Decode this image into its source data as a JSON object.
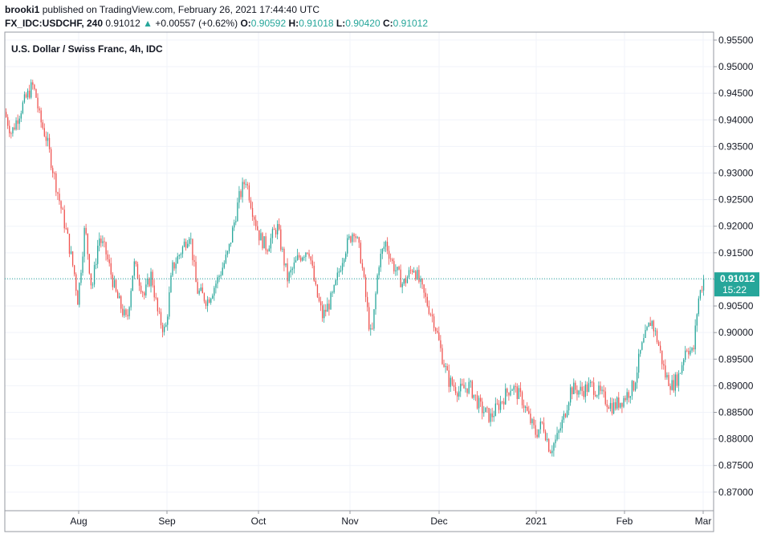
{
  "header": {
    "author": "brooki1",
    "published_text": "published on TradingView.com, February 26, 2021 17:44:40 UTC",
    "symbol": "FX_IDC:USDCHF, 240",
    "last": "0.91012",
    "change_arrow": "▲",
    "change": "+0.00557 (+0.62%)",
    "o_label": "O:",
    "o_value": "0.90592",
    "h_label": "H:",
    "h_value": "0.91018",
    "l_label": "L:",
    "l_value": "0.90420",
    "c_label": "C:",
    "c_value": "0.91012"
  },
  "colors": {
    "up": "#26a69a",
    "down": "#ef5350",
    "price_tag": "#26a69a",
    "axis_text": "#131722",
    "grid": "#f0f3fa"
  },
  "chart_data": {
    "type": "candlestick",
    "title": "U.S. Dollar / Swiss Franc, 4h, IDC",
    "xlabel": "",
    "ylabel": "",
    "ylim": [
      0.8665,
      0.9565
    ],
    "y_ticks": [
      "0.95500",
      "0.95000",
      "0.94500",
      "0.94000",
      "0.93500",
      "0.93000",
      "0.92500",
      "0.92000",
      "0.91500",
      "0.91000",
      "0.90500",
      "0.90000",
      "0.89500",
      "0.89000",
      "0.88500",
      "0.88000",
      "0.87500",
      "0.87000"
    ],
    "x_ticks": [
      "Aug",
      "Sep",
      "Oct",
      "Nov",
      "Dec",
      "2021",
      "Feb",
      "Mar"
    ],
    "grid": true,
    "last_price": "0.91012",
    "countdown": "15:22",
    "path_points": [
      [
        0,
        0.9415
      ],
      [
        0.01,
        0.9375
      ],
      [
        0.025,
        0.9425
      ],
      [
        0.04,
        0.9465
      ],
      [
        0.045,
        0.9445
      ],
      [
        0.05,
        0.9405
      ],
      [
        0.06,
        0.9365
      ],
      [
        0.075,
        0.927
      ],
      [
        0.09,
        0.918
      ],
      [
        0.1,
        0.911
      ],
      [
        0.105,
        0.906
      ],
      [
        0.115,
        0.92
      ],
      [
        0.125,
        0.908
      ],
      [
        0.135,
        0.918
      ],
      [
        0.145,
        0.915
      ],
      [
        0.16,
        0.907
      ],
      [
        0.175,
        0.902
      ],
      [
        0.185,
        0.913
      ],
      [
        0.2,
        0.907
      ],
      [
        0.21,
        0.911
      ],
      [
        0.22,
        0.903
      ],
      [
        0.23,
        0.9
      ],
      [
        0.24,
        0.912
      ],
      [
        0.255,
        0.916
      ],
      [
        0.265,
        0.919
      ],
      [
        0.275,
        0.908
      ],
      [
        0.29,
        0.906
      ],
      [
        0.305,
        0.91
      ],
      [
        0.32,
        0.915
      ],
      [
        0.335,
        0.925
      ],
      [
        0.345,
        0.929
      ],
      [
        0.355,
        0.923
      ],
      [
        0.365,
        0.918
      ],
      [
        0.375,
        0.916
      ],
      [
        0.39,
        0.92
      ],
      [
        0.405,
        0.91
      ],
      [
        0.42,
        0.914
      ],
      [
        0.435,
        0.916
      ],
      [
        0.445,
        0.908
      ],
      [
        0.455,
        0.903
      ],
      [
        0.47,
        0.907
      ],
      [
        0.485,
        0.915
      ],
      [
        0.5,
        0.9195
      ],
      [
        0.51,
        0.914
      ],
      [
        0.52,
        0.903
      ],
      [
        0.525,
        0.8985
      ],
      [
        0.535,
        0.913
      ],
      [
        0.545,
        0.917
      ],
      [
        0.555,
        0.913
      ],
      [
        0.57,
        0.909
      ],
      [
        0.585,
        0.9125
      ],
      [
        0.6,
        0.907
      ],
      [
        0.615,
        0.902
      ],
      [
        0.625,
        0.896
      ],
      [
        0.635,
        0.891
      ],
      [
        0.65,
        0.889
      ],
      [
        0.665,
        0.89
      ],
      [
        0.68,
        0.886
      ],
      [
        0.695,
        0.884
      ],
      [
        0.71,
        0.887
      ],
      [
        0.725,
        0.89
      ],
      [
        0.74,
        0.8875
      ],
      [
        0.75,
        0.884
      ],
      [
        0.76,
        0.881
      ],
      [
        0.77,
        0.883
      ],
      [
        0.78,
        0.878
      ],
      [
        0.79,
        0.88
      ],
      [
        0.8,
        0.884
      ],
      [
        0.81,
        0.8895
      ],
      [
        0.825,
        0.889
      ],
      [
        0.84,
        0.89
      ],
      [
        0.855,
        0.888
      ],
      [
        0.87,
        0.886
      ],
      [
        0.885,
        0.8875
      ],
      [
        0.9,
        0.89
      ],
      [
        0.91,
        0.8965
      ],
      [
        0.925,
        0.9025
      ],
      [
        0.935,
        0.898
      ],
      [
        0.945,
        0.892
      ],
      [
        0.955,
        0.89
      ],
      [
        0.965,
        0.892
      ],
      [
        0.975,
        0.8975
      ],
      [
        0.985,
        0.896
      ],
      [
        0.992,
        0.906
      ],
      [
        1.0,
        0.9101
      ]
    ]
  }
}
